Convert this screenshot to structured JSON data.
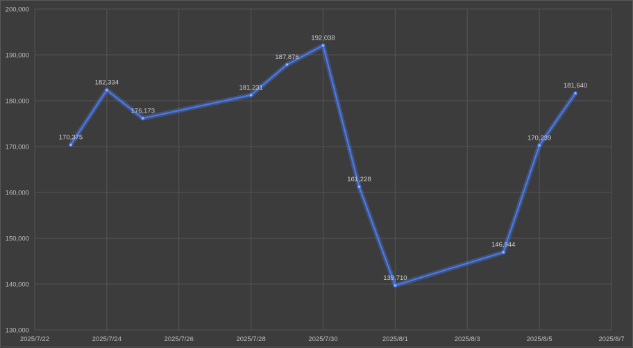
{
  "chart_data": {
    "type": "line",
    "title": "",
    "xlabel": "",
    "ylabel": "",
    "x_ticks": [
      "2025/7/22",
      "2025/7/24",
      "2025/7/26",
      "2025/7/28",
      "2025/7/30",
      "2025/8/1",
      "2025/8/3",
      "2025/8/5",
      "2025/8/7"
    ],
    "y_ticks": [
      "130,000",
      "140,000",
      "150,000",
      "160,000",
      "170,000",
      "180,000",
      "190,000",
      "200,000"
    ],
    "xlim": [
      "2025-07-22",
      "2025-08-07"
    ],
    "ylim": [
      130000,
      200000
    ],
    "grid": true,
    "series": [
      {
        "x": [
          "2025-07-23",
          "2025-07-24",
          "2025-07-25",
          "2025-07-28",
          "2025-07-29",
          "2025-07-30",
          "2025-07-31",
          "2025-08-01",
          "2025-08-04",
          "2025-08-05",
          "2025-08-06"
        ],
        "values": [
          170375,
          182334,
          176173,
          181231,
          187876,
          192038,
          161228,
          139710,
          146944,
          170239,
          181640
        ],
        "labels": [
          "170,375",
          "182,334",
          "176,173",
          "181,231",
          "187,876",
          "192,038",
          "161,228",
          "139,710",
          "146,944",
          "170,239",
          "181,640"
        ],
        "color": "#4a7bf0"
      }
    ]
  }
}
